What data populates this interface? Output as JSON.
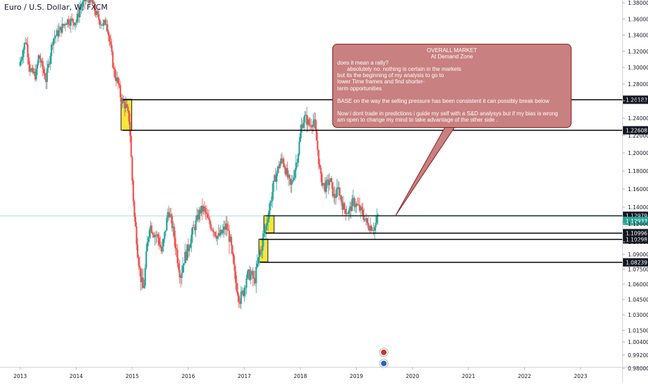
{
  "header": {
    "title": "Euro / U.S. Dollar, W, FXCM"
  },
  "note": {
    "heading": "OVERALL MARKET",
    "subheading": "At Demand Zone",
    "lines": [
      "does it mean a rally?",
      "absolutely no. nothing is certain in the markets",
      "but its the beginning of my analysis to go to",
      "lower Time frames and find shorter-",
      "term opportunities"
    ],
    "para2": "BASE on the way the selling pressure has been consistent it can possibly break below",
    "para3a": "Now i dont trade in predictions i guide my self with a S&D analysys but if  my bias is wrong",
    "para3b": "am open to change my mind to take advantage of the other side ."
  },
  "colors": {
    "up": "#26a69a",
    "down": "#ef5350",
    "zone_fill": "#f5e21a",
    "zone_border": "#131722",
    "note_fill": "#c88080",
    "note_border": "#8a1e1e",
    "last_price": "#26a69a"
  },
  "chart_data": {
    "type": "candlestick",
    "instrument": "Euro / U.S. Dollar",
    "timeframe": "W",
    "source": "FXCM",
    "x_ticks": [
      "2013",
      "2014",
      "2015",
      "2016",
      "2017",
      "2018",
      "2019",
      "2020",
      "2021",
      "2022",
      "2023"
    ],
    "y_ticks": [
      "1.38000",
      "1.36000",
      "1.34000",
      "1.32000",
      "1.30000",
      "1.28000",
      "1.26000",
      "1.24000",
      "1.22000",
      "1.20000",
      "1.18000",
      "1.16000",
      "1.14000",
      "1.12000",
      "1.10000",
      "1.09000",
      "1.07500",
      "1.06000",
      "1.04500",
      "1.03000",
      "1.01500",
      "1.00400",
      "0.99200",
      "0.98000"
    ],
    "y_range": [
      0.98,
      1.39
    ],
    "x_range": [
      2012.95,
      2023.3
    ],
    "level_lines": [
      {
        "price": 1.26183,
        "label": "1.26183",
        "x_start": 2014.83
      },
      {
        "price": 1.22608,
        "label": "1.22608",
        "x_start": 2014.83
      },
      {
        "price": 1.12979,
        "label": "1.12979",
        "x_start": 2017.38
      },
      {
        "price": 1.10996,
        "label": "1.10996",
        "x_start": 2017.38
      },
      {
        "price": 1.10298,
        "label": "1.10298",
        "x_start": 2017.28
      },
      {
        "price": 1.08239,
        "label": "1.08239",
        "x_start": 2017.28
      }
    ],
    "last_price": {
      "price": 1.12933,
      "label": "1.12933"
    },
    "demand_zones": [
      {
        "x0": 2014.8,
        "x1": 2014.99,
        "top": 1.26183,
        "bottom": 1.22608
      },
      {
        "x0": 2017.35,
        "x1": 2017.53,
        "top": 1.12979,
        "bottom": 1.10996
      },
      {
        "x0": 2017.26,
        "x1": 2017.42,
        "top": 1.10298,
        "bottom": 1.08239
      }
    ],
    "price_path": [
      [
        2013.0,
        1.302
      ],
      [
        2013.12,
        1.335
      ],
      [
        2013.2,
        1.295
      ],
      [
        2013.3,
        1.29
      ],
      [
        2013.35,
        1.315
      ],
      [
        2013.48,
        1.285
      ],
      [
        2013.6,
        1.335
      ],
      [
        2013.72,
        1.345
      ],
      [
        2013.85,
        1.358
      ],
      [
        2014.02,
        1.357
      ],
      [
        2014.08,
        1.372
      ],
      [
        2014.15,
        1.38
      ],
      [
        2014.22,
        1.388
      ],
      [
        2014.3,
        1.38
      ],
      [
        2014.4,
        1.362
      ],
      [
        2014.5,
        1.352
      ],
      [
        2014.56,
        1.358
      ],
      [
        2014.62,
        1.33
      ],
      [
        2014.7,
        1.292
      ],
      [
        2014.76,
        1.283
      ],
      [
        2014.82,
        1.262
      ],
      [
        2014.9,
        1.254
      ],
      [
        2014.97,
        1.237
      ],
      [
        2015.01,
        1.18
      ],
      [
        2015.06,
        1.125
      ],
      [
        2015.12,
        1.09
      ],
      [
        2015.17,
        1.067
      ],
      [
        2015.22,
        1.053
      ],
      [
        2015.26,
        1.082
      ],
      [
        2015.33,
        1.12
      ],
      [
        2015.4,
        1.11
      ],
      [
        2015.48,
        1.105
      ],
      [
        2015.55,
        1.09
      ],
      [
        2015.62,
        1.117
      ],
      [
        2015.66,
        1.137
      ],
      [
        2015.72,
        1.122
      ],
      [
        2015.8,
        1.095
      ],
      [
        2015.88,
        1.068
      ],
      [
        2015.94,
        1.085
      ],
      [
        2016.0,
        1.092
      ],
      [
        2016.08,
        1.108
      ],
      [
        2016.15,
        1.12
      ],
      [
        2016.22,
        1.135
      ],
      [
        2016.3,
        1.138
      ],
      [
        2016.38,
        1.122
      ],
      [
        2016.46,
        1.115
      ],
      [
        2016.55,
        1.105
      ],
      [
        2016.62,
        1.11
      ],
      [
        2016.7,
        1.118
      ],
      [
        2016.78,
        1.097
      ],
      [
        2016.86,
        1.063
      ],
      [
        2016.94,
        1.045
      ],
      [
        2017.0,
        1.053
      ],
      [
        2017.06,
        1.068
      ],
      [
        2017.14,
        1.07
      ],
      [
        2017.2,
        1.062
      ],
      [
        2017.26,
        1.082
      ],
      [
        2017.33,
        1.098
      ],
      [
        2017.4,
        1.116
      ],
      [
        2017.47,
        1.14
      ],
      [
        2017.55,
        1.168
      ],
      [
        2017.63,
        1.185
      ],
      [
        2017.7,
        1.194
      ],
      [
        2017.78,
        1.175
      ],
      [
        2017.85,
        1.162
      ],
      [
        2017.92,
        1.182
      ],
      [
        2017.98,
        1.201
      ],
      [
        2018.04,
        1.232
      ],
      [
        2018.1,
        1.241
      ],
      [
        2018.18,
        1.232
      ],
      [
        2018.26,
        1.238
      ],
      [
        2018.32,
        1.208
      ],
      [
        2018.38,
        1.172
      ],
      [
        2018.46,
        1.162
      ],
      [
        2018.55,
        1.17
      ],
      [
        2018.62,
        1.15
      ],
      [
        2018.7,
        1.16
      ],
      [
        2018.78,
        1.14
      ],
      [
        2018.88,
        1.133
      ],
      [
        2018.96,
        1.146
      ],
      [
        2019.05,
        1.14
      ],
      [
        2019.13,
        1.132
      ],
      [
        2019.21,
        1.12
      ],
      [
        2019.28,
        1.117
      ],
      [
        2019.35,
        1.116
      ],
      [
        2019.4,
        1.129
      ]
    ],
    "note_title": "OVERALL MARKET",
    "note_pointer": {
      "x": 2019.82,
      "price": 1.1295
    }
  }
}
